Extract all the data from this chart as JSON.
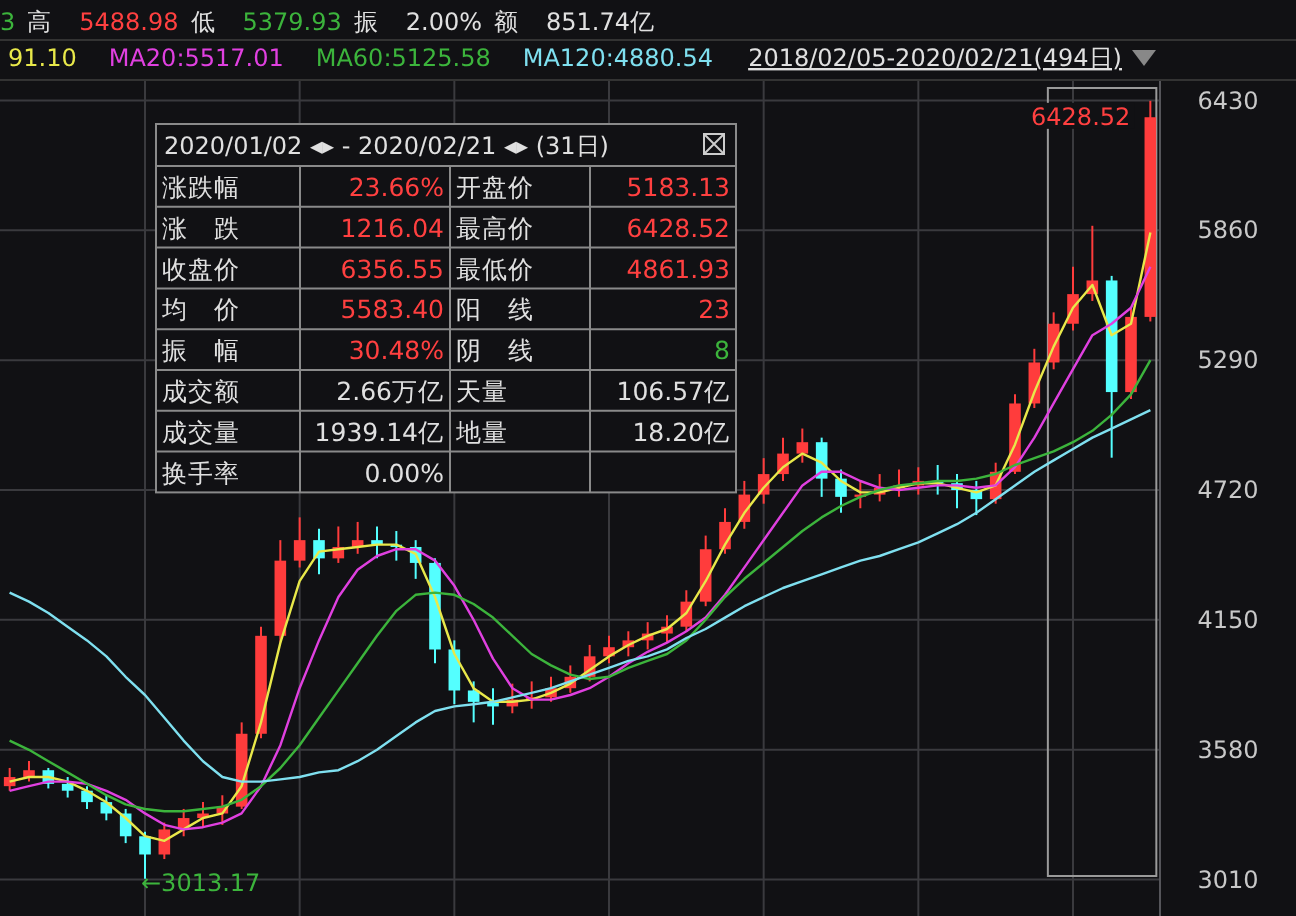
{
  "chart_data": {
    "type": "candlestick",
    "title": "3 高 5488.98 低 5379.93 振 2.00% 额 851.74亿",
    "subtitle": "2018/02/05-2020/02/21(494日)",
    "categories": [
      null,
      null,
      null,
      null,
      null,
      null,
      null,
      null,
      null,
      null,
      null,
      null,
      null,
      null,
      null,
      null,
      null,
      null,
      null,
      null,
      null,
      null,
      null,
      null,
      null,
      null,
      null,
      null,
      null,
      null,
      null,
      null,
      null,
      null,
      null,
      null,
      null,
      null,
      null,
      null,
      null,
      null,
      null,
      null,
      null,
      null,
      null,
      null,
      null,
      null,
      null,
      null,
      null,
      null,
      null,
      null,
      null,
      null,
      null,
      null
    ],
    "ohlc": [
      [
        3420,
        3500,
        3400,
        3460
      ],
      [
        3460,
        3530,
        3440,
        3490
      ],
      [
        3490,
        3500,
        3410,
        3430
      ],
      [
        3430,
        3460,
        3370,
        3400
      ],
      [
        3400,
        3420,
        3320,
        3350
      ],
      [
        3350,
        3380,
        3270,
        3300
      ],
      [
        3300,
        3320,
        3170,
        3200
      ],
      [
        3200,
        3220,
        3013.17,
        3120
      ],
      [
        3120,
        3260,
        3100,
        3230
      ],
      [
        3230,
        3320,
        3200,
        3280
      ],
      [
        3280,
        3350,
        3240,
        3300
      ],
      [
        3300,
        3380,
        3250,
        3330
      ],
      [
        3330,
        3700,
        3320,
        3650
      ],
      [
        3650,
        4120,
        3630,
        4080
      ],
      [
        4080,
        4500,
        4050,
        4410
      ],
      [
        4410,
        4600,
        4380,
        4500
      ],
      [
        4500,
        4550,
        4350,
        4420
      ],
      [
        4420,
        4560,
        4400,
        4470
      ],
      [
        4470,
        4580,
        4440,
        4500
      ],
      [
        4500,
        4560,
        4420,
        4480
      ],
      [
        4480,
        4540,
        4410,
        4470
      ],
      [
        4470,
        4500,
        4330,
        4400
      ],
      [
        4400,
        4420,
        3960,
        4020
      ],
      [
        4020,
        4060,
        3780,
        3840
      ],
      [
        3840,
        3880,
        3700,
        3790
      ],
      [
        3790,
        3850,
        3690,
        3770
      ],
      [
        3770,
        3870,
        3740,
        3800
      ],
      [
        3800,
        3880,
        3760,
        3810
      ],
      [
        3810,
        3900,
        3790,
        3850
      ],
      [
        3850,
        3950,
        3830,
        3900
      ],
      [
        3900,
        4040,
        3880,
        3990
      ],
      [
        3990,
        4080,
        3960,
        4030
      ],
      [
        4030,
        4100,
        3990,
        4060
      ],
      [
        4060,
        4140,
        4020,
        4090
      ],
      [
        4090,
        4170,
        4050,
        4120
      ],
      [
        4120,
        4280,
        4100,
        4230
      ],
      [
        4230,
        4520,
        4210,
        4460
      ],
      [
        4460,
        4640,
        4440,
        4580
      ],
      [
        4580,
        4760,
        4550,
        4700
      ],
      [
        4700,
        4860,
        4660,
        4790
      ],
      [
        4790,
        4950,
        4760,
        4880
      ],
      [
        4880,
        4990,
        4840,
        4930
      ],
      [
        4930,
        4950,
        4690,
        4770
      ],
      [
        4770,
        4810,
        4620,
        4690
      ],
      [
        4690,
        4760,
        4640,
        4700
      ],
      [
        4700,
        4790,
        4670,
        4730
      ],
      [
        4730,
        4810,
        4690,
        4740
      ],
      [
        4740,
        4820,
        4700,
        4760
      ],
      [
        4760,
        4830,
        4700,
        4750
      ],
      [
        4750,
        4790,
        4640,
        4720
      ],
      [
        4720,
        4760,
        4610,
        4680
      ],
      [
        4680,
        4840,
        4660,
        4800
      ],
      [
        4800,
        5140,
        4790,
        5100
      ],
      [
        5100,
        5340,
        5080,
        5280
      ],
      [
        5280,
        5500,
        5250,
        5450
      ],
      [
        5450,
        5700,
        5420,
        5580
      ],
      [
        5580,
        5880,
        5550,
        5640
      ],
      [
        5640,
        5660,
        4861.93,
        5150
      ],
      [
        5150,
        5520,
        5120,
        5480
      ],
      [
        5480,
        6428.52,
        5460,
        6356.55
      ]
    ],
    "colors": [
      "#ff3c3c",
      "#ff3c3c",
      "#54ffff",
      "#54ffff",
      "#54ffff",
      "#54ffff",
      "#54ffff",
      "#54ffff",
      "#ff3c3c",
      "#ff3c3c",
      "#ff3c3c",
      "#ff3c3c",
      "#ff3c3c",
      "#ff3c3c",
      "#ff3c3c",
      "#ff3c3c",
      "#54ffff",
      "#ff3c3c",
      "#ff3c3c",
      "#54ffff",
      "#54ffff",
      "#54ffff",
      "#54ffff",
      "#54ffff",
      "#54ffff",
      "#54ffff",
      "#ff3c3c",
      "#ff3c3c",
      "#ff3c3c",
      "#ff3c3c",
      "#ff3c3c",
      "#ff3c3c",
      "#ff3c3c",
      "#ff3c3c",
      "#ff3c3c",
      "#ff3c3c",
      "#ff3c3c",
      "#ff3c3c",
      "#ff3c3c",
      "#ff3c3c",
      "#ff3c3c",
      "#ff3c3c",
      "#54ffff",
      "#54ffff",
      "#ff3c3c",
      "#ff3c3c",
      "#ff3c3c",
      "#ff3c3c",
      "#54ffff",
      "#54ffff",
      "#54ffff",
      "#ff3c3c",
      "#ff3c3c",
      "#ff3c3c",
      "#ff3c3c",
      "#ff3c3c",
      "#ff3c3c",
      "#54ffff",
      "#ff3c3c",
      "#ff3c3c"
    ],
    "series": [
      {
        "name": "91.10",
        "type": "line",
        "color": "#e8e84a",
        "values": [
          3440,
          3460,
          3460,
          3440,
          3400,
          3350,
          3280,
          3200,
          3180,
          3230,
          3280,
          3300,
          3420,
          3700,
          4050,
          4320,
          4450,
          4460,
          4470,
          4480,
          4480,
          4440,
          4250,
          4000,
          3850,
          3790,
          3790,
          3800,
          3830,
          3870,
          3930,
          3990,
          4040,
          4080,
          4110,
          4180,
          4320,
          4480,
          4620,
          4730,
          4820,
          4880,
          4840,
          4760,
          4710,
          4710,
          4730,
          4750,
          4750,
          4730,
          4710,
          4740,
          4920,
          5150,
          5350,
          5520,
          5620,
          5400,
          5450,
          5850
        ]
      },
      {
        "name": "MA20:5517.01",
        "type": "line",
        "color": "#e040e0",
        "values": [
          3400,
          3420,
          3440,
          3440,
          3430,
          3400,
          3360,
          3300,
          3250,
          3230,
          3240,
          3260,
          3300,
          3420,
          3600,
          3850,
          4060,
          4250,
          4370,
          4430,
          4460,
          4460,
          4410,
          4300,
          4150,
          3980,
          3850,
          3800,
          3800,
          3820,
          3850,
          3900,
          3960,
          4010,
          4050,
          4100,
          4160,
          4260,
          4380,
          4500,
          4620,
          4740,
          4800,
          4800,
          4760,
          4730,
          4720,
          4730,
          4740,
          4740,
          4730,
          4740,
          4820,
          4950,
          5100,
          5250,
          5400,
          5450,
          5520,
          5700
        ]
      },
      {
        "name": "MA60:5125.58",
        "type": "line",
        "color": "#3cb43c",
        "values": [
          3620,
          3580,
          3530,
          3480,
          3430,
          3380,
          3340,
          3320,
          3310,
          3310,
          3320,
          3330,
          3360,
          3420,
          3500,
          3600,
          3720,
          3840,
          3960,
          4080,
          4190,
          4260,
          4270,
          4260,
          4220,
          4160,
          4080,
          4000,
          3950,
          3910,
          3890,
          3900,
          3940,
          3970,
          4000,
          4060,
          4150,
          4250,
          4330,
          4400,
          4470,
          4540,
          4600,
          4650,
          4690,
          4720,
          4740,
          4750,
          4760,
          4760,
          4770,
          4790,
          4830,
          4860,
          4890,
          4930,
          4980,
          5050,
          5140,
          5290
        ]
      },
      {
        "name": "MA120:4880.54",
        "type": "line",
        "color": "#7fe0f0",
        "values": [
          4270,
          4230,
          4180,
          4120,
          4060,
          3990,
          3900,
          3820,
          3720,
          3620,
          3530,
          3460,
          3440,
          3440,
          3450,
          3460,
          3480,
          3490,
          3530,
          3580,
          3640,
          3700,
          3750,
          3770,
          3780,
          3790,
          3810,
          3830,
          3850,
          3880,
          3910,
          3940,
          3970,
          3990,
          4020,
          4070,
          4110,
          4160,
          4210,
          4250,
          4290,
          4320,
          4350,
          4380,
          4410,
          4430,
          4460,
          4490,
          4530,
          4570,
          4620,
          4680,
          4740,
          4800,
          4850,
          4900,
          4950,
          4990,
          5030,
          5070
        ]
      }
    ],
    "ylim": [
      2850,
      6520
    ],
    "yticks": [
      3010,
      3580,
      4150,
      4720,
      5290,
      5860,
      6430
    ],
    "grid": true,
    "legend": "top left",
    "annotations": [
      "6428.52",
      "←3013.17",
      "2020/01/02 ◂▸ - 2020/02/21 ◂▸  (31日)",
      "涨跌幅",
      "23.66%",
      "开盘价",
      "5183.13",
      "涨　跌",
      "1216.04",
      "最高价",
      "6428.52",
      "收盘价",
      "6356.55",
      "最低价",
      "4861.93",
      "均　价",
      "5583.40",
      "阳　线",
      "23",
      "振　幅",
      "30.48%",
      "阴　线",
      "8",
      "成交额",
      "2.66万亿",
      "天量",
      "106.57亿",
      "成交量",
      "1939.14亿",
      "地量",
      "18.20亿",
      "换手率",
      "0.00%"
    ]
  }
}
